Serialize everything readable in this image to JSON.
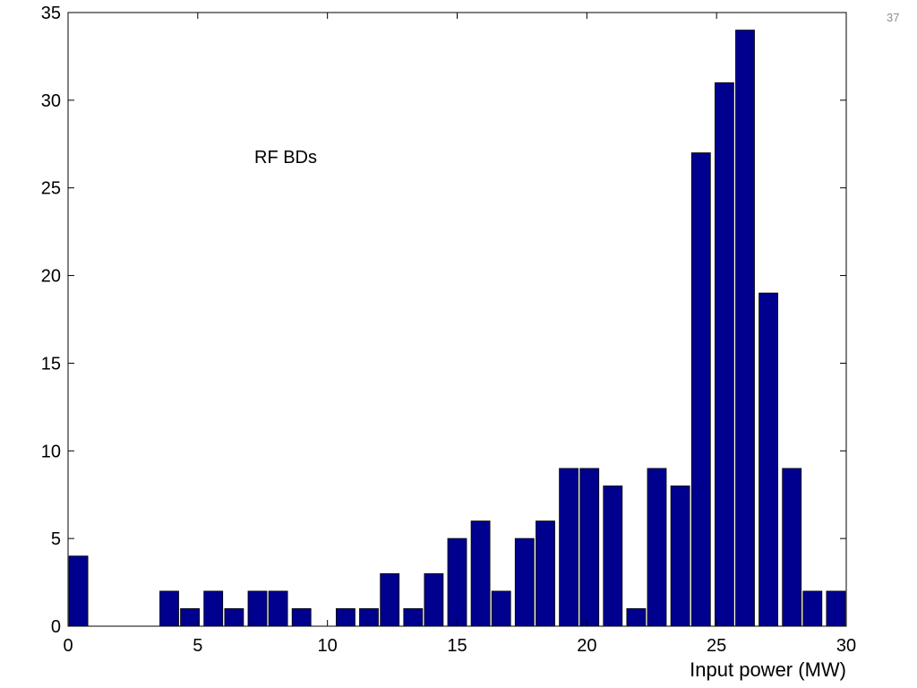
{
  "slide": {
    "number": "37"
  },
  "chart_data": {
    "type": "bar",
    "title": "",
    "xlabel": "Input power (MW)",
    "ylabel": "",
    "annotation": "RF BDs",
    "xlim": [
      0,
      30
    ],
    "ylim": [
      0,
      35
    ],
    "xticks": [
      0,
      5,
      10,
      15,
      20,
      25,
      30
    ],
    "yticks": [
      0,
      5,
      10,
      15,
      20,
      25,
      30,
      35
    ],
    "grid": false,
    "bar_color": "#00008f",
    "x": [
      0.4,
      1.3,
      2.1,
      3.0,
      3.9,
      4.7,
      5.6,
      6.4,
      7.3,
      8.1,
      9.0,
      9.9,
      10.7,
      11.6,
      12.4,
      13.3,
      14.1,
      15.0,
      15.9,
      16.7,
      17.6,
      18.4,
      19.3,
      20.1,
      21.0,
      21.9,
      22.7,
      23.6,
      24.4,
      25.3,
      26.1,
      27.0,
      27.9,
      28.7,
      29.6
    ],
    "values": [
      4,
      0,
      0,
      0,
      2,
      1,
      2,
      1,
      2,
      2,
      1,
      0,
      1,
      1,
      3,
      1,
      3,
      5,
      6,
      2,
      5,
      6,
      9,
      9,
      8,
      1,
      9,
      8,
      27,
      31,
      34,
      19,
      9,
      2,
      2
    ]
  }
}
